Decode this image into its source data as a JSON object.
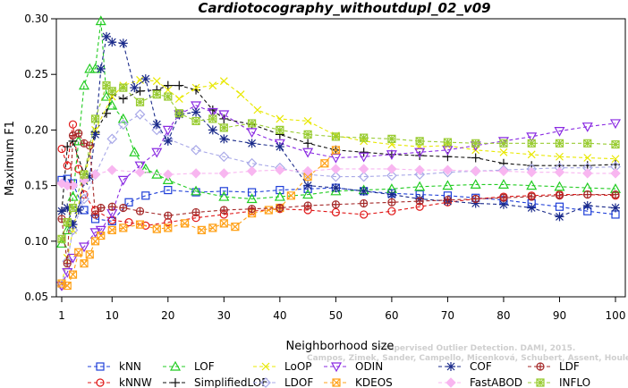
{
  "chart_data": {
    "type": "line",
    "title": "Cardiotocography_withoutdupl_02_v09",
    "xlabel": "Neighborhood size",
    "ylabel": "Maximum F1",
    "xlim": [
      1,
      100
    ],
    "ylim": [
      0.05,
      0.3
    ],
    "xticks": [
      1,
      10,
      20,
      30,
      40,
      50,
      60,
      70,
      80,
      90,
      100
    ],
    "yticks": [
      0.05,
      0.1,
      0.15,
      0.2,
      0.25,
      0.3
    ],
    "ytick_labels": [
      "0.05",
      "0.10",
      "0.15",
      "0.20",
      "0.25",
      "0.30"
    ],
    "grid": false,
    "legend_position": "bottom",
    "watermark": [
      "Unsupervised Outlier Detection. DAMI, 2015.",
      "Campos, Zimek, Sander, Campello, Micenková, Schubert, Assent, Houle"
    ],
    "series": [
      {
        "name": "kNN",
        "color": "#1f3fd8",
        "marker": "square",
        "x": [
          1,
          2,
          3,
          5,
          7,
          10,
          13,
          16,
          20,
          25,
          30,
          35,
          40,
          45,
          50,
          55,
          60,
          65,
          70,
          75,
          80,
          85,
          90,
          95,
          100
        ],
        "y": [
          0.155,
          0.156,
          0.152,
          0.128,
          0.12,
          0.118,
          0.135,
          0.141,
          0.146,
          0.144,
          0.145,
          0.144,
          0.146,
          0.147,
          0.148,
          0.145,
          0.143,
          0.142,
          0.141,
          0.139,
          0.137,
          0.134,
          0.131,
          0.127,
          0.124
        ]
      },
      {
        "name": "kNNW",
        "color": "#e01818",
        "marker": "circle",
        "x": [
          1,
          2,
          3,
          4,
          5,
          7,
          10,
          13,
          16,
          20,
          25,
          30,
          35,
          40,
          45,
          50,
          55,
          60,
          65,
          70,
          75,
          80,
          85,
          90,
          95,
          100
        ],
        "y": [
          0.183,
          0.168,
          0.205,
          0.165,
          0.142,
          0.128,
          0.119,
          0.117,
          0.114,
          0.117,
          0.121,
          0.124,
          0.127,
          0.129,
          0.128,
          0.126,
          0.124,
          0.127,
          0.131,
          0.135,
          0.138,
          0.14,
          0.141,
          0.142,
          0.142,
          0.141
        ]
      },
      {
        "name": "LOF",
        "color": "#22cc22",
        "marker": "triangle-up",
        "x": [
          1,
          2,
          3,
          4,
          5,
          6,
          7,
          8,
          9,
          10,
          12,
          14,
          16,
          18,
          20,
          25,
          30,
          35,
          40,
          45,
          50,
          55,
          60,
          65,
          70,
          75,
          80,
          85,
          90,
          95,
          100
        ],
        "y": [
          0.098,
          0.11,
          0.14,
          0.19,
          0.24,
          0.255,
          0.255,
          0.298,
          0.23,
          0.222,
          0.21,
          0.18,
          0.165,
          0.16,
          0.155,
          0.145,
          0.14,
          0.138,
          0.14,
          0.142,
          0.145,
          0.146,
          0.147,
          0.149,
          0.15,
          0.151,
          0.151,
          0.15,
          0.149,
          0.148,
          0.147
        ]
      },
      {
        "name": "SimplifiedLOF",
        "color": "#111111",
        "marker": "plus",
        "x": [
          1,
          2,
          3,
          5,
          7,
          9,
          10,
          12,
          15,
          18,
          20,
          22,
          25,
          28,
          30,
          35,
          40,
          45,
          50,
          55,
          60,
          65,
          70,
          75,
          80,
          85,
          90,
          95,
          100
        ],
        "y": [
          0.127,
          0.185,
          0.19,
          0.16,
          0.198,
          0.215,
          0.232,
          0.228,
          0.235,
          0.236,
          0.24,
          0.24,
          0.236,
          0.218,
          0.21,
          0.205,
          0.196,
          0.188,
          0.182,
          0.18,
          0.178,
          0.177,
          0.176,
          0.175,
          0.17,
          0.168,
          0.168,
          0.168,
          0.169
        ]
      },
      {
        "name": "LoOP",
        "color": "#e8e800",
        "marker": "x",
        "x": [
          1,
          2,
          3,
          5,
          7,
          10,
          12,
          15,
          18,
          20,
          22,
          25,
          28,
          30,
          33,
          36,
          40,
          45,
          50,
          55,
          60,
          65,
          70,
          75,
          80,
          85,
          90,
          95,
          100
        ],
        "y": [
          0.062,
          0.085,
          0.11,
          0.155,
          0.2,
          0.23,
          0.24,
          0.245,
          0.244,
          0.236,
          0.228,
          0.238,
          0.24,
          0.244,
          0.232,
          0.218,
          0.21,
          0.208,
          0.195,
          0.19,
          0.187,
          0.185,
          0.186,
          0.182,
          0.18,
          0.178,
          0.176,
          0.175,
          0.174
        ]
      },
      {
        "name": "LDOF",
        "color": "#a9a9e8",
        "marker": "diamond",
        "x": [
          1,
          2,
          3,
          5,
          7,
          10,
          12,
          15,
          18,
          20,
          25,
          30,
          35,
          40,
          45,
          50,
          55,
          60,
          65,
          70,
          75,
          80,
          85,
          90,
          95,
          100
        ],
        "y": [
          0.06,
          0.082,
          0.11,
          0.138,
          0.16,
          0.192,
          0.205,
          0.214,
          0.2,
          0.192,
          0.182,
          0.176,
          0.17,
          0.166,
          0.16,
          0.158,
          0.158,
          0.159,
          0.16,
          0.162,
          0.163,
          0.164,
          0.165,
          0.166,
          0.166,
          0.167
        ]
      },
      {
        "name": "ODIN",
        "color": "#8a2be2",
        "marker": "triangle-down",
        "x": [
          1,
          2,
          3,
          5,
          7,
          8,
          10,
          12,
          15,
          18,
          20,
          22,
          25,
          28,
          30,
          35,
          40,
          45,
          50,
          55,
          60,
          65,
          70,
          75,
          80,
          85,
          90,
          95,
          100
        ],
        "y": [
          0.06,
          0.072,
          0.085,
          0.095,
          0.108,
          0.11,
          0.125,
          0.155,
          0.168,
          0.18,
          0.2,
          0.214,
          0.222,
          0.216,
          0.214,
          0.198,
          0.188,
          0.18,
          0.175,
          0.176,
          0.178,
          0.18,
          0.182,
          0.186,
          0.19,
          0.194,
          0.199,
          0.203,
          0.206
        ]
      },
      {
        "name": "KDEOS",
        "color": "#ffa21a",
        "marker": "square-x",
        "x": [
          1,
          2,
          3,
          4,
          5,
          6,
          7,
          8,
          10,
          12,
          15,
          18,
          20,
          23,
          26,
          28,
          30,
          32,
          35,
          38,
          40,
          42,
          45,
          48,
          50
        ],
        "y": [
          0.062,
          0.06,
          0.07,
          0.09,
          0.08,
          0.088,
          0.1,
          0.105,
          0.11,
          0.112,
          0.115,
          0.111,
          0.112,
          0.116,
          0.11,
          0.112,
          0.116,
          0.113,
          0.125,
          0.128,
          0.13,
          0.141,
          0.158,
          0.17,
          0.182
        ]
      },
      {
        "name": "COF",
        "color": "#1a2a8a",
        "marker": "star",
        "x": [
          1,
          2,
          3,
          4,
          5,
          6,
          7,
          8,
          9,
          10,
          12,
          14,
          16,
          18,
          20,
          22,
          25,
          28,
          30,
          35,
          40,
          45,
          50,
          55,
          60,
          65,
          70,
          75,
          80,
          85,
          90,
          95,
          100
        ],
        "y": [
          0.127,
          0.13,
          0.115,
          0.128,
          0.154,
          0.158,
          0.196,
          0.255,
          0.284,
          0.279,
          0.278,
          0.238,
          0.246,
          0.205,
          0.19,
          0.214,
          0.216,
          0.2,
          0.192,
          0.188,
          0.185,
          0.15,
          0.148,
          0.145,
          0.142,
          0.138,
          0.136,
          0.134,
          0.133,
          0.13,
          0.122,
          0.132,
          0.13
        ]
      },
      {
        "name": "FastABOD",
        "color": "#f8b6f0",
        "marker": "diamond-filled",
        "x": [
          1,
          2,
          3,
          5,
          7,
          10,
          15,
          20,
          25,
          30,
          35,
          40,
          45,
          50,
          55,
          60,
          65,
          70,
          75,
          80,
          85,
          90,
          95,
          100
        ],
        "y": [
          0.152,
          0.15,
          0.15,
          0.155,
          0.16,
          0.164,
          0.162,
          0.16,
          0.161,
          0.161,
          0.163,
          0.164,
          0.163,
          0.165,
          0.165,
          0.165,
          0.164,
          0.164,
          0.163,
          0.163,
          0.162,
          0.162,
          0.161,
          0.161
        ]
      },
      {
        "name": "LDF",
        "color": "#a52a2a",
        "marker": "circle-plus",
        "x": [
          1,
          2,
          3,
          4,
          5,
          6,
          7,
          8,
          10,
          12,
          15,
          20,
          25,
          30,
          35,
          40,
          45,
          50,
          55,
          60,
          65,
          70,
          75,
          80,
          85,
          90,
          95,
          100
        ],
        "y": [
          0.12,
          0.08,
          0.195,
          0.197,
          0.188,
          0.186,
          0.124,
          0.13,
          0.131,
          0.13,
          0.127,
          0.123,
          0.126,
          0.128,
          0.129,
          0.13,
          0.132,
          0.133,
          0.134,
          0.135,
          0.136,
          0.137,
          0.138,
          0.139,
          0.14,
          0.141,
          0.142,
          0.142
        ]
      },
      {
        "name": "INFLO",
        "color": "#99cc33",
        "marker": "square-star",
        "x": [
          1,
          2,
          3,
          5,
          7,
          9,
          10,
          12,
          15,
          18,
          20,
          22,
          25,
          28,
          30,
          35,
          40,
          45,
          50,
          55,
          60,
          65,
          70,
          75,
          80,
          85,
          90,
          95,
          100
        ],
        "y": [
          0.102,
          0.117,
          0.13,
          0.16,
          0.21,
          0.24,
          0.235,
          0.238,
          0.225,
          0.232,
          0.23,
          0.215,
          0.208,
          0.21,
          0.202,
          0.206,
          0.2,
          0.196,
          0.194,
          0.193,
          0.192,
          0.19,
          0.189,
          0.188,
          0.188,
          0.188,
          0.188,
          0.188,
          0.187
        ]
      }
    ]
  }
}
